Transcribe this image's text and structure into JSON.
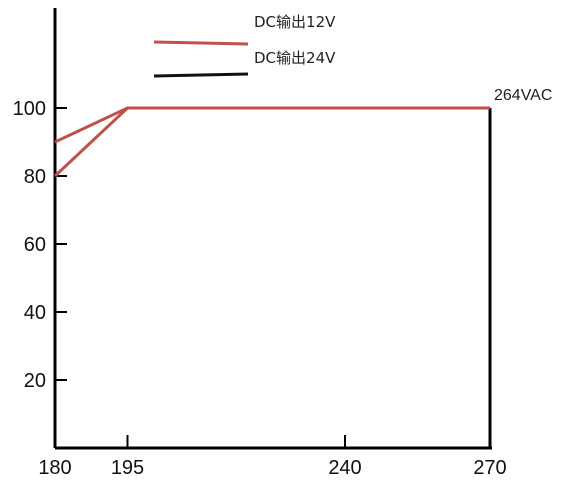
{
  "chart_data": {
    "type": "line",
    "title": "",
    "xlabel": "",
    "ylabel": "",
    "xlim": [
      180,
      270
    ],
    "ylim": [
      0,
      115
    ],
    "x_ticks": [
      "180",
      "195",
      "240",
      "270"
    ],
    "y_ticks": [
      "20",
      "40",
      "60",
      "80",
      "100"
    ],
    "grid": false,
    "legend_position": "top-center",
    "series": [
      {
        "name": "DC输出12V",
        "color": "#c0504d",
        "points": [
          [
            180,
            90
          ],
          [
            195,
            100
          ],
          [
            270,
            100
          ]
        ]
      },
      {
        "name": "DC输出24V",
        "color": "#111111",
        "points": [
          [
            180,
            80
          ],
          [
            195,
            100
          ],
          [
            270,
            100
          ]
        ]
      }
    ],
    "plot_series": [
      {
        "color": "#c0504d",
        "points": [
          [
            180,
            90
          ],
          [
            195,
            100
          ],
          [
            270,
            100
          ]
        ]
      },
      {
        "color": "#c0504d",
        "points": [
          [
            180,
            80
          ],
          [
            195,
            100
          ]
        ]
      }
    ],
    "annotations": [
      {
        "text": "264VAC",
        "x": 270,
        "y": 100
      }
    ]
  }
}
